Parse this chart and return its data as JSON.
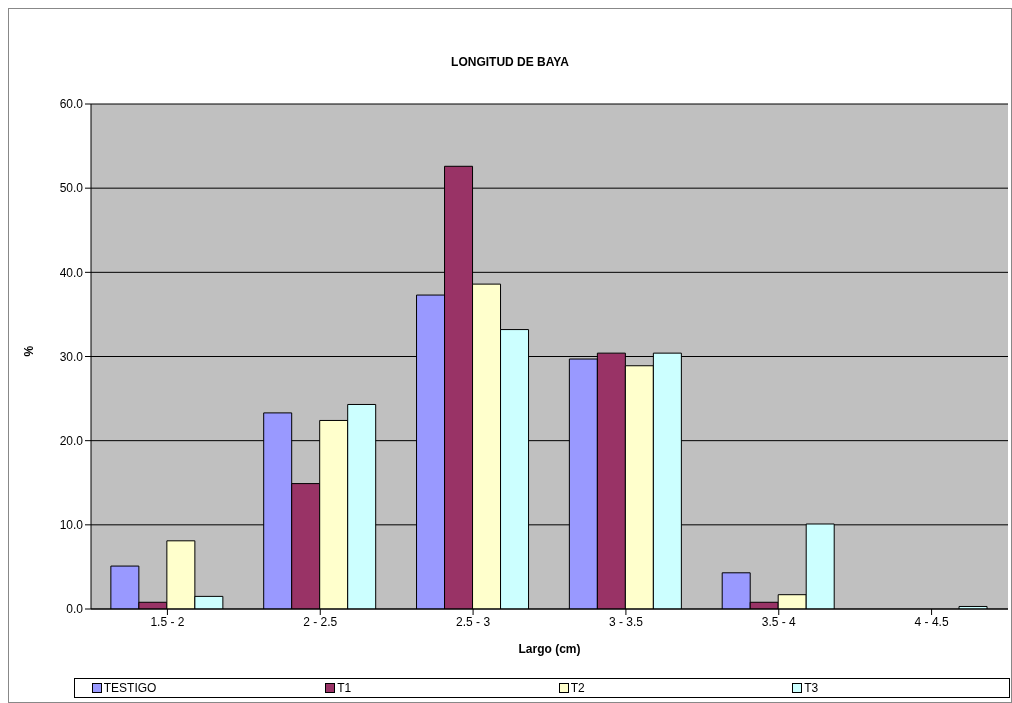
{
  "chart_data": {
    "type": "bar",
    "title": "LONGITUD DE BAYA",
    "xlabel": "Largo (cm)",
    "ylabel": "%",
    "categories": [
      "1.5 - 2",
      "2 - 2.5",
      "2.5 - 3",
      "3 - 3.5",
      "3.5 - 4",
      "4 - 4.5"
    ],
    "series": [
      {
        "name": "TESTIGO",
        "color": "#9999ff",
        "values": [
          5.1,
          23.3,
          37.3,
          29.7,
          4.3,
          0
        ]
      },
      {
        "name": "T1",
        "color": "#993366",
        "values": [
          0.8,
          14.9,
          52.6,
          30.4,
          0.8,
          0
        ]
      },
      {
        "name": "T2",
        "color": "#ffffcc",
        "values": [
          8.1,
          22.4,
          38.6,
          28.9,
          1.7,
          0
        ]
      },
      {
        "name": "T3",
        "color": "#ccffff",
        "values": [
          1.5,
          24.3,
          33.2,
          30.4,
          10.1,
          0.3
        ]
      }
    ],
    "ylim": [
      0,
      60
    ],
    "yticks": [
      {
        "value": 0,
        "label": "0.0"
      },
      {
        "value": 10,
        "label": "10.0"
      },
      {
        "value": 20,
        "label": "20.0"
      },
      {
        "value": 30,
        "label": "30.0"
      },
      {
        "value": 40,
        "label": "40.0"
      },
      {
        "value": 50,
        "label": "50.0"
      },
      {
        "value": 60,
        "label": "60.0"
      }
    ],
    "grid": "y",
    "legend": "bottom"
  }
}
